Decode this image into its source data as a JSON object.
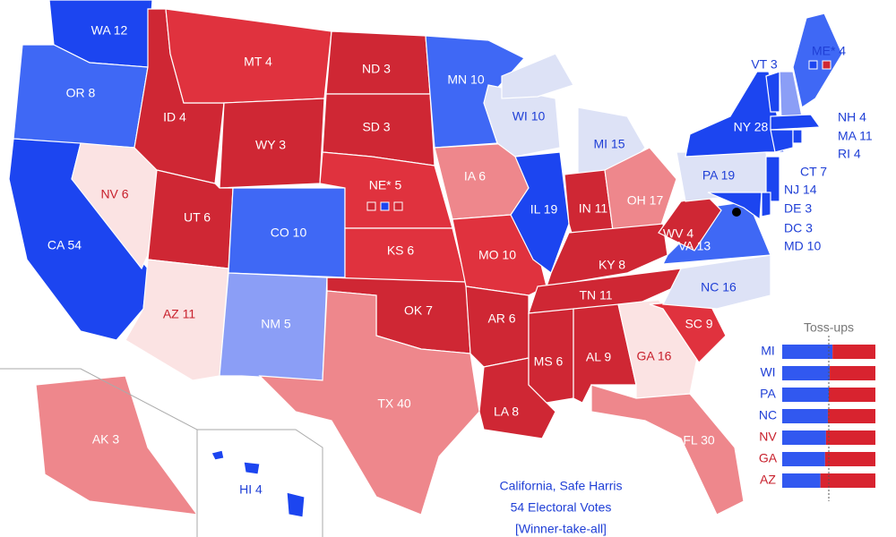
{
  "state_labels": [
    "WA 12",
    "OR 8",
    "CA 54",
    "NV 6",
    "ID 4",
    "MT 4",
    "WY 3",
    "UT 6",
    "AZ 11",
    "CO 10",
    "NM 5",
    "ND 3",
    "SD 3",
    "NE* 5",
    "KS 6",
    "OK 7",
    "TX 40",
    "MN 10",
    "IA 6",
    "MO 10",
    "AR 6",
    "LA 8",
    "WI 10",
    "MI 15",
    "IL 19",
    "IN 11",
    "OH 17",
    "KY 8",
    "TN 11",
    "MS 6",
    "AL 9",
    "GA 16",
    "FL 30",
    "SC 9",
    "NC 16",
    "VA 13",
    "WV 4",
    "PA 19",
    "NY 28",
    "VT 3",
    "NH 4",
    "MA 11",
    "RI 4",
    "CT 7",
    "NJ 14",
    "DE 3",
    "DC 3",
    "MD 10",
    "ME* 4",
    "AK 3",
    "HI 4"
  ],
  "tossups": {
    "title": "Toss-ups",
    "rows": [
      {
        "state": "MI",
        "harris_share": 54
      },
      {
        "state": "WI",
        "harris_share": 51
      },
      {
        "state": "PA",
        "harris_share": 50
      },
      {
        "state": "NC",
        "harris_share": 49
      },
      {
        "state": "NV",
        "harris_share": 47
      },
      {
        "state": "GA",
        "harris_share": 46
      },
      {
        "state": "AZ",
        "harris_share": 41
      }
    ]
  },
  "callout": [
    "California, Safe Harris",
    "54 Electoral Votes",
    "[Winner-take-all]"
  ]
}
